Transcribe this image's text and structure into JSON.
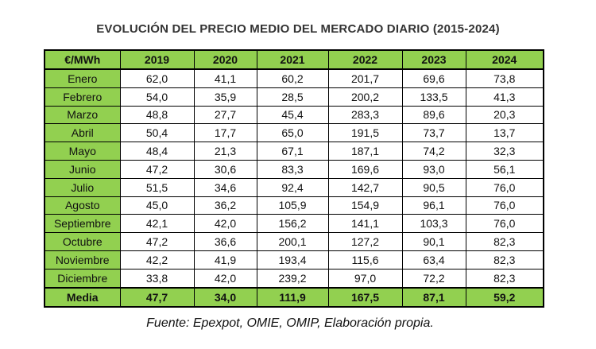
{
  "title": "EVOLUCIÓN DEL PRECIO MEDIO DEL MERCADO DIARIO (2015-2024)",
  "table": {
    "header": [
      "€/MWh",
      "2019",
      "2020",
      "2021",
      "2022",
      "2023",
      "2024"
    ],
    "rows": [
      [
        "Enero",
        "62,0",
        "41,1",
        "60,2",
        "201,7",
        "69,6",
        "73,8"
      ],
      [
        "Febrero",
        "54,0",
        "35,9",
        "28,5",
        "200,2",
        "133,5",
        "41,3"
      ],
      [
        "Marzo",
        "48,8",
        "27,7",
        "45,4",
        "283,3",
        "89,6",
        "20,3"
      ],
      [
        "Abril",
        "50,4",
        "17,7",
        "65,0",
        "191,5",
        "73,7",
        "13,7"
      ],
      [
        "Mayo",
        "48,4",
        "21,3",
        "67,1",
        "187,1",
        "74,2",
        "32,3"
      ],
      [
        "Junio",
        "47,2",
        "30,6",
        "83,3",
        "169,6",
        "93,0",
        "56,1"
      ],
      [
        "Julio",
        "51,5",
        "34,6",
        "92,4",
        "142,7",
        "90,5",
        "76,0"
      ],
      [
        "Agosto",
        "45,0",
        "36,2",
        "105,9",
        "154,9",
        "96,1",
        "76,0"
      ],
      [
        "Septiembre",
        "42,1",
        "42,0",
        "156,2",
        "141,1",
        "103,3",
        "76,0"
      ],
      [
        "Octubre",
        "47,2",
        "36,6",
        "200,1",
        "127,2",
        "90,1",
        "82,3"
      ],
      [
        "Noviembre",
        "42,2",
        "41,9",
        "193,4",
        "115,6",
        "63,4",
        "82,3"
      ],
      [
        "Diciembre",
        "33,8",
        "42,0",
        "239,2",
        "97,0",
        "72,2",
        "82,3"
      ]
    ],
    "footer": [
      "Media",
      "47,7",
      "34,0",
      "111,9",
      "167,5",
      "87,1",
      "59,2"
    ]
  },
  "source": "Fuente: Epexpot, OMIE, OMIP, Elaboración propia."
}
